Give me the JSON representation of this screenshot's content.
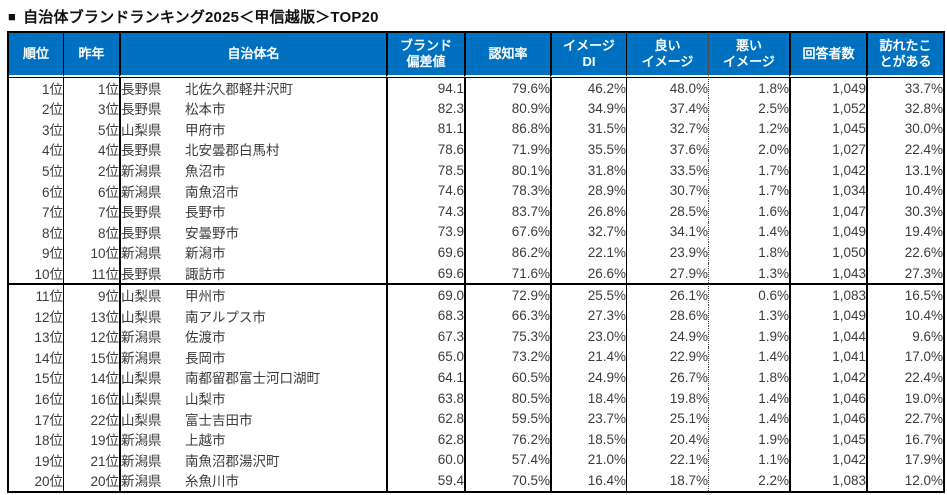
{
  "header": {
    "bullet": "■",
    "title": "自治体ブランドランキング2025＜甲信越版＞TOP20"
  },
  "colors": {
    "header_bg": "#0070C0",
    "header_text": "#FFFFFF",
    "body_text": "#3B3B3B",
    "border": "#000000"
  },
  "table": {
    "divider_after_row": 10,
    "headers": {
      "rank": "順位",
      "last_year": "昨年",
      "name": "自治体名",
      "brand_score": "ブランド\n偏差値",
      "awareness": "認知率",
      "image_di": "イメージ\nDI",
      "good_image": "良い\nイメージ",
      "bad_image": "悪い\nイメージ",
      "respondents": "回答者数",
      "visited": "訪れたこ\nとがある"
    },
    "rows": [
      {
        "rank": "1位",
        "last_year": "1位",
        "pref": "長野県",
        "city": "北佐久郡軽井沢町",
        "brand_score": "94.1",
        "awareness": "79.6%",
        "image_di": "46.2%",
        "good_image": "48.0%",
        "bad_image": "1.8%",
        "respondents": "1,049",
        "visited": "33.7%"
      },
      {
        "rank": "2位",
        "last_year": "3位",
        "pref": "長野県",
        "city": "松本市",
        "brand_score": "82.3",
        "awareness": "80.9%",
        "image_di": "34.9%",
        "good_image": "37.4%",
        "bad_image": "2.5%",
        "respondents": "1,052",
        "visited": "32.8%"
      },
      {
        "rank": "3位",
        "last_year": "5位",
        "pref": "山梨県",
        "city": "甲府市",
        "brand_score": "81.1",
        "awareness": "86.8%",
        "image_di": "31.5%",
        "good_image": "32.7%",
        "bad_image": "1.2%",
        "respondents": "1,045",
        "visited": "30.0%"
      },
      {
        "rank": "4位",
        "last_year": "4位",
        "pref": "長野県",
        "city": "北安曇郡白馬村",
        "brand_score": "78.6",
        "awareness": "71.9%",
        "image_di": "35.5%",
        "good_image": "37.6%",
        "bad_image": "2.0%",
        "respondents": "1,027",
        "visited": "22.4%"
      },
      {
        "rank": "5位",
        "last_year": "2位",
        "pref": "新潟県",
        "city": "魚沼市",
        "brand_score": "78.5",
        "awareness": "80.1%",
        "image_di": "31.8%",
        "good_image": "33.5%",
        "bad_image": "1.7%",
        "respondents": "1,042",
        "visited": "13.1%"
      },
      {
        "rank": "6位",
        "last_year": "6位",
        "pref": "新潟県",
        "city": "南魚沼市",
        "brand_score": "74.6",
        "awareness": "78.3%",
        "image_di": "28.9%",
        "good_image": "30.7%",
        "bad_image": "1.7%",
        "respondents": "1,034",
        "visited": "10.4%"
      },
      {
        "rank": "7位",
        "last_year": "7位",
        "pref": "長野県",
        "city": "長野市",
        "brand_score": "74.3",
        "awareness": "83.7%",
        "image_di": "26.8%",
        "good_image": "28.5%",
        "bad_image": "1.6%",
        "respondents": "1,047",
        "visited": "30.3%"
      },
      {
        "rank": "8位",
        "last_year": "8位",
        "pref": "長野県",
        "city": "安曇野市",
        "brand_score": "73.9",
        "awareness": "67.6%",
        "image_di": "32.7%",
        "good_image": "34.1%",
        "bad_image": "1.4%",
        "respondents": "1,049",
        "visited": "19.4%"
      },
      {
        "rank": "9位",
        "last_year": "10位",
        "pref": "新潟県",
        "city": "新潟市",
        "brand_score": "69.6",
        "awareness": "86.2%",
        "image_di": "22.1%",
        "good_image": "23.9%",
        "bad_image": "1.8%",
        "respondents": "1,050",
        "visited": "22.6%"
      },
      {
        "rank": "10位",
        "last_year": "11位",
        "pref": "長野県",
        "city": "諏訪市",
        "brand_score": "69.6",
        "awareness": "71.6%",
        "image_di": "26.6%",
        "good_image": "27.9%",
        "bad_image": "1.3%",
        "respondents": "1,043",
        "visited": "27.3%"
      },
      {
        "rank": "11位",
        "last_year": "9位",
        "pref": "山梨県",
        "city": "甲州市",
        "brand_score": "69.0",
        "awareness": "72.9%",
        "image_di": "25.5%",
        "good_image": "26.1%",
        "bad_image": "0.6%",
        "respondents": "1,083",
        "visited": "16.5%"
      },
      {
        "rank": "12位",
        "last_year": "13位",
        "pref": "山梨県",
        "city": "南アルプス市",
        "brand_score": "68.3",
        "awareness": "66.3%",
        "image_di": "27.3%",
        "good_image": "28.6%",
        "bad_image": "1.3%",
        "respondents": "1,049",
        "visited": "10.4%"
      },
      {
        "rank": "13位",
        "last_year": "12位",
        "pref": "新潟県",
        "city": "佐渡市",
        "brand_score": "67.3",
        "awareness": "75.3%",
        "image_di": "23.0%",
        "good_image": "24.9%",
        "bad_image": "1.9%",
        "respondents": "1,044",
        "visited": "9.6%"
      },
      {
        "rank": "14位",
        "last_year": "15位",
        "pref": "新潟県",
        "city": "長岡市",
        "brand_score": "65.0",
        "awareness": "73.2%",
        "image_di": "21.4%",
        "good_image": "22.9%",
        "bad_image": "1.4%",
        "respondents": "1,041",
        "visited": "17.0%"
      },
      {
        "rank": "15位",
        "last_year": "14位",
        "pref": "山梨県",
        "city": "南都留郡富士河口湖町",
        "brand_score": "64.1",
        "awareness": "60.5%",
        "image_di": "24.9%",
        "good_image": "26.7%",
        "bad_image": "1.8%",
        "respondents": "1,042",
        "visited": "22.4%"
      },
      {
        "rank": "16位",
        "last_year": "16位",
        "pref": "山梨県",
        "city": "山梨市",
        "brand_score": "63.8",
        "awareness": "80.5%",
        "image_di": "18.4%",
        "good_image": "19.8%",
        "bad_image": "1.4%",
        "respondents": "1,046",
        "visited": "19.0%"
      },
      {
        "rank": "17位",
        "last_year": "22位",
        "pref": "山梨県",
        "city": "富士吉田市",
        "brand_score": "62.8",
        "awareness": "59.5%",
        "image_di": "23.7%",
        "good_image": "25.1%",
        "bad_image": "1.4%",
        "respondents": "1,046",
        "visited": "22.7%"
      },
      {
        "rank": "18位",
        "last_year": "19位",
        "pref": "新潟県",
        "city": "上越市",
        "brand_score": "62.8",
        "awareness": "76.2%",
        "image_di": "18.5%",
        "good_image": "20.4%",
        "bad_image": "1.9%",
        "respondents": "1,045",
        "visited": "16.7%"
      },
      {
        "rank": "19位",
        "last_year": "21位",
        "pref": "新潟県",
        "city": "南魚沼郡湯沢町",
        "brand_score": "60.0",
        "awareness": "57.4%",
        "image_di": "21.0%",
        "good_image": "22.1%",
        "bad_image": "1.1%",
        "respondents": "1,042",
        "visited": "17.9%"
      },
      {
        "rank": "20位",
        "last_year": "20位",
        "pref": "新潟県",
        "city": "糸魚川市",
        "brand_score": "59.4",
        "awareness": "70.5%",
        "image_di": "16.4%",
        "good_image": "18.7%",
        "bad_image": "2.2%",
        "respondents": "1,083",
        "visited": "12.0%"
      }
    ]
  }
}
